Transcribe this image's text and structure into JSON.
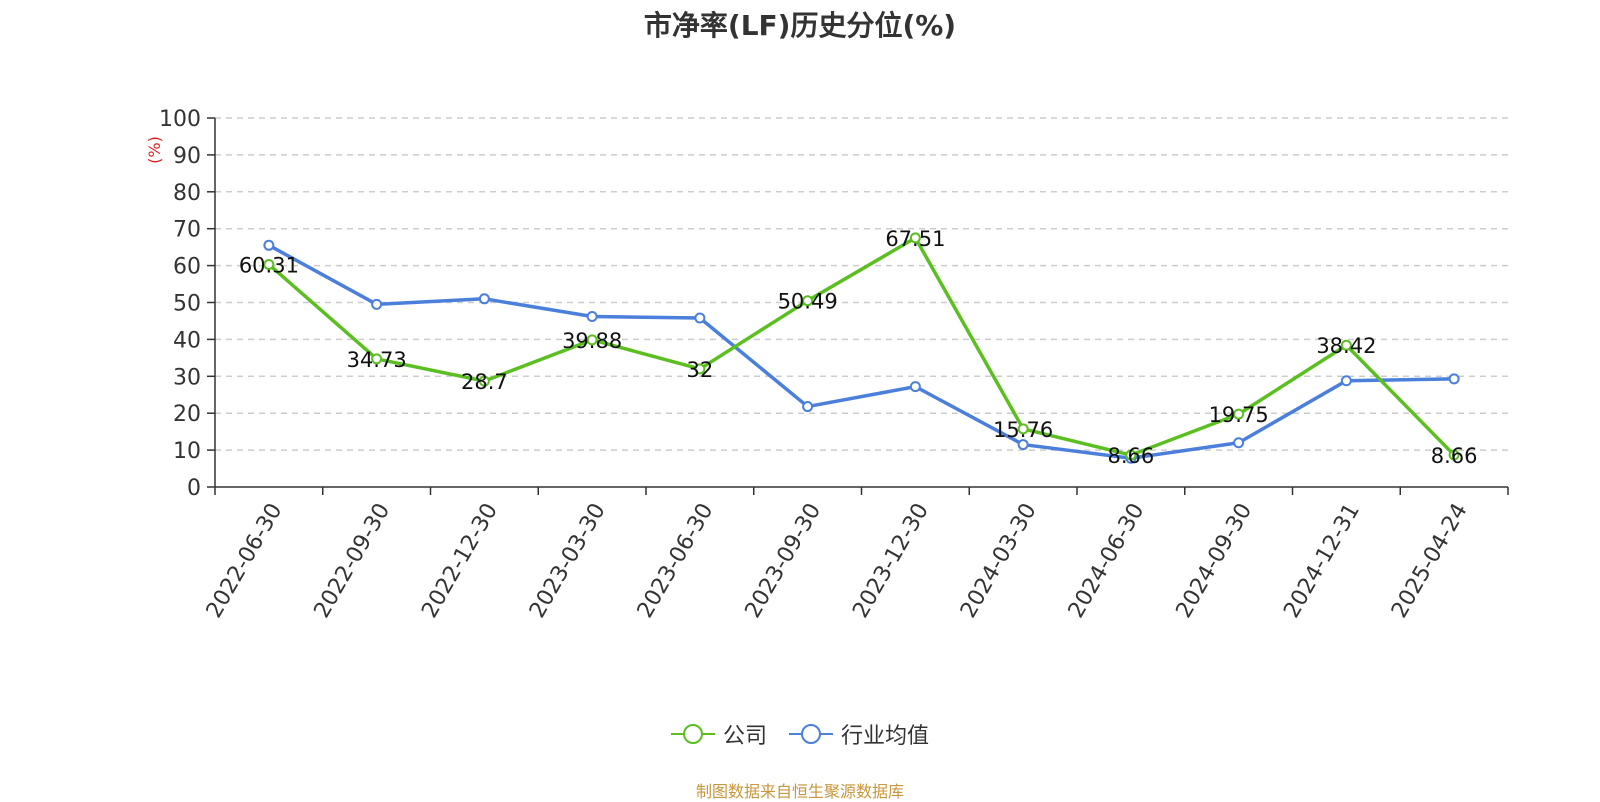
{
  "title": "市净率(LF)历史分位(%)",
  "y_unit": "(%)",
  "source": "制图数据来自恒生聚源数据库",
  "colors": {
    "company": "#5bbf21",
    "industry": "#4a7fdc",
    "unit": "#e02020",
    "source": "#c8963c"
  },
  "chart_data": {
    "type": "line",
    "title": "市净率(LF)历史分位(%)",
    "ylabel": "(%)",
    "ylim": [
      0,
      100
    ],
    "y_ticks": [
      0,
      10,
      20,
      30,
      40,
      50,
      60,
      70,
      80,
      90,
      100
    ],
    "grid": true,
    "legend_position": "bottom",
    "categories": [
      "2022-06-30",
      "2022-09-30",
      "2022-12-30",
      "2023-03-30",
      "2023-06-30",
      "2023-09-30",
      "2023-12-30",
      "2024-03-30",
      "2024-06-30",
      "2024-09-30",
      "2024-12-31",
      "2025-04-24"
    ],
    "series": [
      {
        "name": "公司",
        "values": [
          60.31,
          34.73,
          28.7,
          39.88,
          32,
          50.49,
          67.51,
          15.76,
          8.66,
          19.75,
          38.42,
          8.66
        ],
        "labels": [
          "60.31",
          "34.73",
          "28.7",
          "39.88",
          "32",
          "50.49",
          "67.51",
          "15.76",
          "8.66",
          "19.75",
          "38.42",
          "8.66"
        ]
      },
      {
        "name": "行业均值",
        "values": [
          65.5,
          49.5,
          51,
          46.2,
          45.8,
          21.8,
          27.2,
          11.5,
          7.8,
          12,
          28.8,
          29.3
        ]
      }
    ]
  }
}
